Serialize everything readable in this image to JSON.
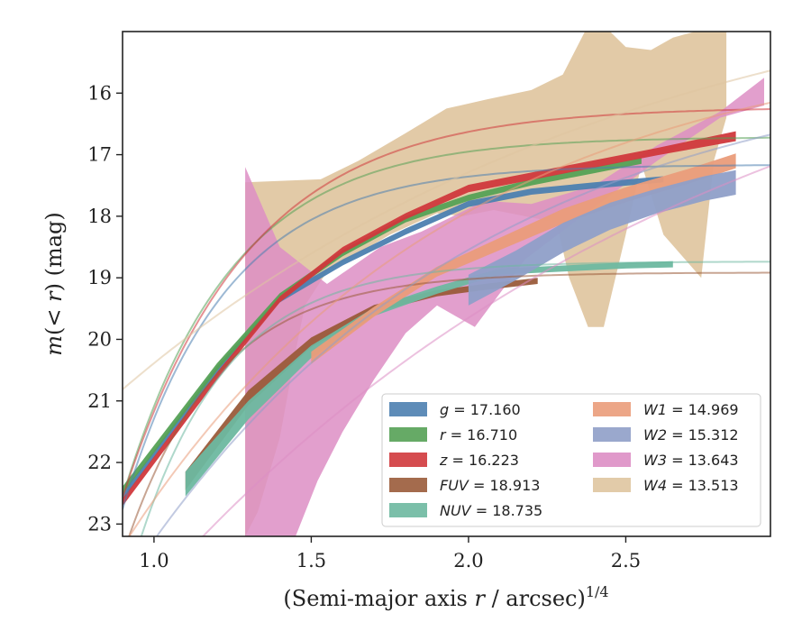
{
  "chart_data": {
    "type": "area",
    "xlabel": "(Semi-major axis r / arcsec)^1/4",
    "ylabel": "m(< r) (mag)",
    "xlim": [
      0.9,
      2.96
    ],
    "ylim": [
      23.2,
      15.0
    ],
    "y_inverted": true,
    "x_ticks": [
      1.0,
      1.5,
      2.0,
      2.5
    ],
    "x_tick_labels": [
      "1.0",
      "1.5",
      "2.0",
      "2.5"
    ],
    "y_ticks": [
      16,
      17,
      18,
      19,
      20,
      21,
      22,
      23
    ],
    "y_tick_labels": [
      "16",
      "17",
      "18",
      "19",
      "20",
      "21",
      "22",
      "23"
    ],
    "grid": false,
    "legend_position": "lower-right",
    "legend_columns": 2,
    "series": [
      {
        "name": "g",
        "label_value": "17.160",
        "color": "#4c7fb0",
        "fit": {
          "m_inf": 17.16,
          "a": 5.6,
          "b": 3.05,
          "x0": 0.9
        },
        "band": {
          "x": [
            0.9,
            1.2,
            1.4,
            1.6,
            1.8,
            2.0,
            2.2,
            2.4,
            2.62
          ],
          "y": [
            22.55,
            20.5,
            19.35,
            18.75,
            18.25,
            17.8,
            17.6,
            17.5,
            17.4
          ],
          "width": [
            0.06,
            0.06,
            0.05,
            0.05,
            0.05,
            0.05,
            0.05,
            0.05,
            0.05
          ]
        }
      },
      {
        "name": "r",
        "label_value": "16.710",
        "color": "#55a155",
        "fit": {
          "m_inf": 16.71,
          "a": 5.85,
          "b": 2.9,
          "x0": 0.9
        },
        "band": {
          "x": [
            0.9,
            1.2,
            1.4,
            1.6,
            1.8,
            2.0,
            2.2,
            2.4,
            2.55
          ],
          "y": [
            22.45,
            20.45,
            19.3,
            18.6,
            18.05,
            17.7,
            17.45,
            17.25,
            17.1
          ],
          "width": [
            0.06,
            0.06,
            0.05,
            0.05,
            0.05,
            0.05,
            0.05,
            0.05,
            0.05
          ]
        }
      },
      {
        "name": "z",
        "label_value": "16.223",
        "color": "#d0383c",
        "fit": {
          "m_inf": 16.223,
          "a": 6.35,
          "b": 2.5,
          "x0": 0.9
        },
        "band": {
          "x": [
            0.9,
            1.2,
            1.4,
            1.6,
            1.8,
            2.0,
            2.2,
            2.4,
            2.6,
            2.85
          ],
          "y": [
            22.65,
            20.6,
            19.35,
            18.55,
            18.0,
            17.55,
            17.35,
            17.15,
            16.95,
            16.7
          ],
          "width": [
            0.06,
            0.06,
            0.05,
            0.05,
            0.05,
            0.06,
            0.06,
            0.06,
            0.06,
            0.08
          ]
        }
      },
      {
        "name": "FUV",
        "label_value": "18.913",
        "color": "#9a5b3a",
        "fit": {
          "m_inf": 18.913,
          "a": 4.6,
          "b": 3.4,
          "x0": 0.9
        },
        "band": {
          "x": [
            1.1,
            1.3,
            1.5,
            1.7,
            1.9,
            2.05,
            2.22
          ],
          "y": [
            22.3,
            20.95,
            20.05,
            19.5,
            19.25,
            19.15,
            19.05
          ],
          "width": [
            0.15,
            0.12,
            0.08,
            0.06,
            0.05,
            0.05,
            0.05
          ]
        }
      },
      {
        "name": "NUV",
        "label_value": "18.735",
        "color": "#6db8a0",
        "fit": {
          "m_inf": 18.735,
          "a": 5.5,
          "b": 3.5,
          "x0": 0.9
        },
        "band": {
          "x": [
            1.1,
            1.3,
            1.5,
            1.7,
            1.9,
            2.1,
            2.3,
            2.5,
            2.65
          ],
          "y": [
            22.35,
            21.15,
            20.2,
            19.55,
            19.2,
            18.9,
            18.85,
            18.8,
            18.78
          ],
          "width": [
            0.2,
            0.15,
            0.1,
            0.07,
            0.06,
            0.05,
            0.05,
            0.05,
            0.05
          ]
        }
      },
      {
        "name": "W1",
        "label_value": "14.969",
        "color": "#ea9c7a",
        "fit": {
          "m_inf": 14.969,
          "a": 8.4,
          "b": 0.95,
          "x0": 0.9
        },
        "band": {
          "x": [
            1.5,
            1.7,
            1.9,
            2.1,
            2.3,
            2.5,
            2.7,
            2.85
          ],
          "y": [
            20.3,
            19.55,
            18.9,
            18.45,
            18.0,
            17.65,
            17.35,
            17.1
          ],
          "width": [
            0.1,
            0.08,
            0.08,
            0.1,
            0.12,
            0.12,
            0.12,
            0.12
          ]
        }
      },
      {
        "name": "W2",
        "label_value": "15.312",
        "color": "#8f9fc8",
        "fit": {
          "m_inf": 15.312,
          "a": 8.7,
          "b": 0.9,
          "x0": 0.9
        },
        "band": {
          "x": [
            2.0,
            2.15,
            2.3,
            2.45,
            2.6,
            2.75,
            2.85
          ],
          "y": [
            19.2,
            18.8,
            18.35,
            18.0,
            17.75,
            17.55,
            17.45
          ],
          "width": [
            0.25,
            0.24,
            0.24,
            0.22,
            0.2,
            0.2,
            0.2
          ]
        }
      },
      {
        "name": "W3",
        "label_value": "13.643",
        "color": "#dd8ec4",
        "fit": {
          "m_inf": 13.643,
          "a": 11.0,
          "b": 0.55,
          "x0": 0.9
        },
        "band_polygon": {
          "upper": [
            [
              1.29,
              17.2
            ],
            [
              1.4,
              18.5
            ],
            [
              1.55,
              19.1
            ],
            [
              1.72,
              18.5
            ],
            [
              1.85,
              18.25
            ],
            [
              2.05,
              17.75
            ],
            [
              2.2,
              17.8
            ],
            [
              2.4,
              17.5
            ],
            [
              2.6,
              16.85
            ],
            [
              2.8,
              16.3
            ],
            [
              2.94,
              15.75
            ]
          ],
          "lower": [
            [
              2.94,
              16.2
            ],
            [
              2.8,
              16.4
            ],
            [
              2.6,
              17.1
            ],
            [
              2.4,
              17.85
            ],
            [
              2.18,
              18.7
            ],
            [
              2.02,
              19.8
            ],
            [
              1.9,
              19.45
            ],
            [
              1.8,
              19.9
            ],
            [
              1.7,
              20.65
            ],
            [
              1.6,
              21.5
            ],
            [
              1.52,
              22.3
            ],
            [
              1.45,
              23.2
            ],
            [
              1.29,
              23.2
            ]
          ]
        }
      },
      {
        "name": "W4",
        "label_value": "13.513",
        "color": "#dfc5a0",
        "fit": {
          "m_inf": 13.513,
          "a": 7.3,
          "b": 0.6,
          "x0": 0.9
        },
        "band_polygon": {
          "upper": [
            [
              1.29,
              17.45
            ],
            [
              1.53,
              17.4
            ],
            [
              1.65,
              17.1
            ],
            [
              1.8,
              16.65
            ],
            [
              1.93,
              16.25
            ],
            [
              2.06,
              16.1
            ],
            [
              2.2,
              15.95
            ],
            [
              2.3,
              15.7
            ],
            [
              2.37,
              15.0
            ],
            [
              2.45,
              15.0
            ],
            [
              2.5,
              15.25
            ],
            [
              2.58,
              15.3
            ],
            [
              2.65,
              15.1
            ],
            [
              2.72,
              15.0
            ],
            [
              2.82,
              15.0
            ]
          ],
          "lower": [
            [
              2.82,
              16.4
            ],
            [
              2.78,
              17.1
            ],
            [
              2.74,
              19.0
            ],
            [
              2.62,
              18.3
            ],
            [
              2.55,
              17.15
            ],
            [
              2.5,
              18.3
            ],
            [
              2.43,
              19.8
            ],
            [
              2.38,
              19.8
            ],
            [
              2.32,
              19.0
            ],
            [
              2.28,
              18.1
            ],
            [
              2.18,
              18.0
            ],
            [
              2.08,
              17.9
            ],
            [
              1.98,
              18.0
            ],
            [
              1.9,
              17.95
            ],
            [
              1.75,
              18.3
            ],
            [
              1.55,
              18.9
            ],
            [
              1.48,
              19.45
            ],
            [
              1.45,
              20.2
            ],
            [
              1.4,
              21.6
            ],
            [
              1.33,
              22.8
            ],
            [
              1.29,
              23.2
            ]
          ]
        }
      }
    ]
  }
}
